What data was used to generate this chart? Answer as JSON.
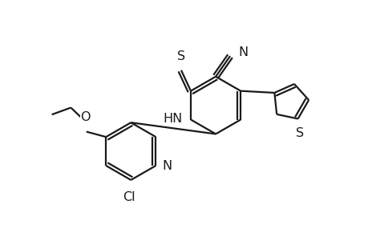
{
  "bg_color": "#ffffff",
  "line_color": "#1a1a1a",
  "line_width": 1.6,
  "font_size": 11.5,
  "fig_width": 4.6,
  "fig_height": 3.0,
  "dpi": 100,
  "xlim": [
    0,
    10
  ],
  "ylim": [
    0,
    6.5
  ]
}
